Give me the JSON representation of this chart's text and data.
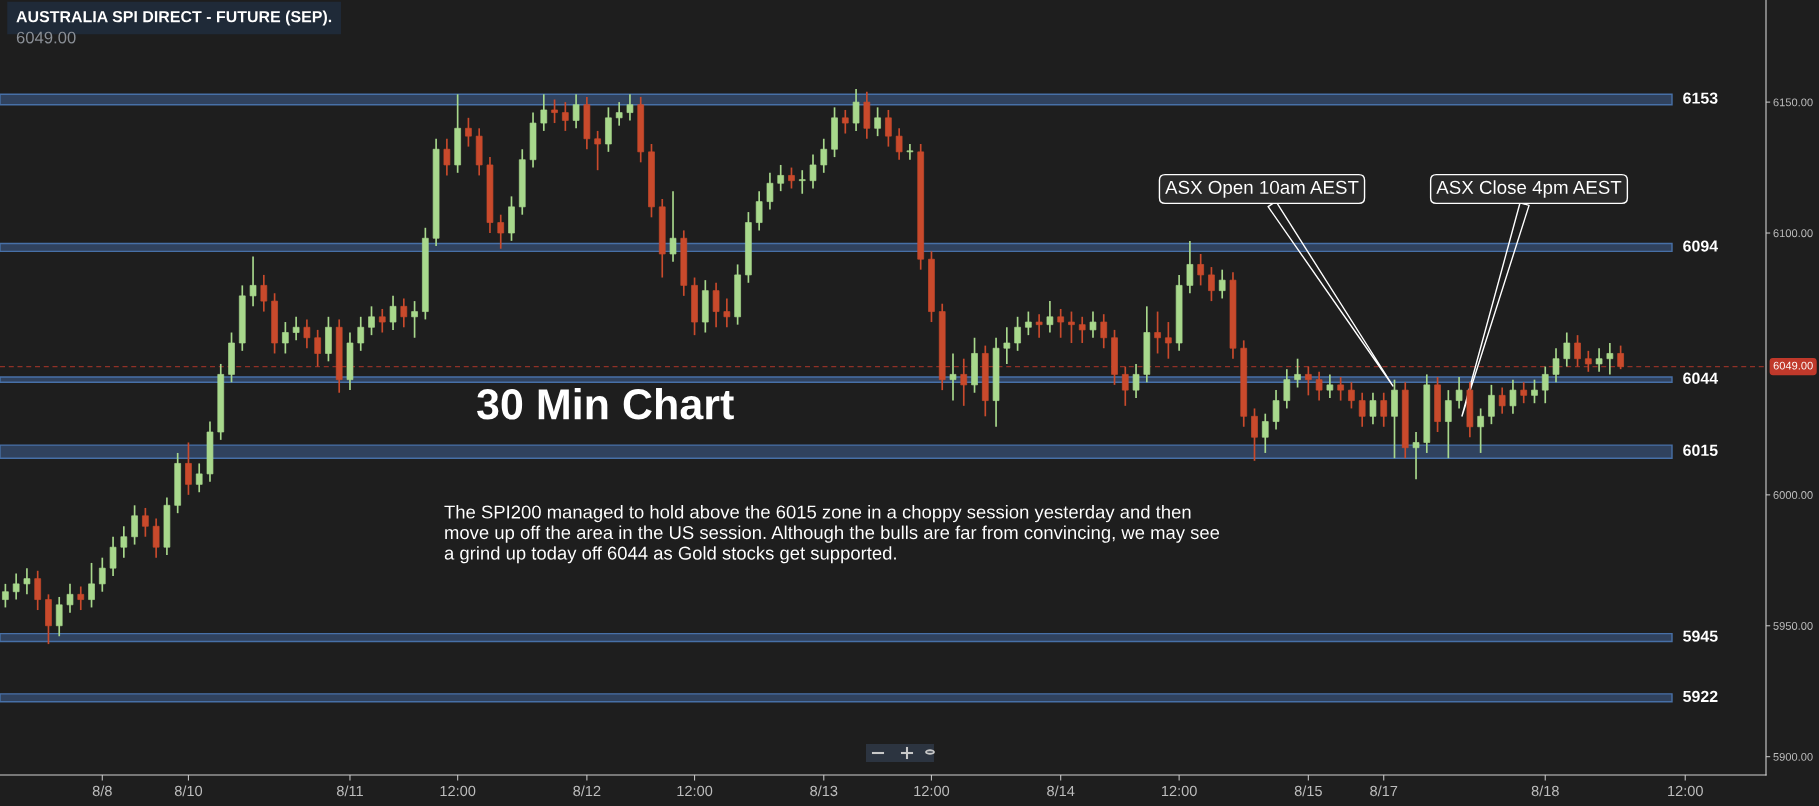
{
  "chart_data": {
    "type": "candlestick",
    "title": "AUSTRALIA SPI DIRECT - FUTURE (SEP).",
    "subtitle": "6049.00",
    "categories": [
      null,
      null,
      null,
      null,
      null,
      null,
      null,
      null,
      null,
      "8/8",
      null,
      null,
      null,
      null,
      null,
      null,
      null,
      "8/10",
      null,
      null,
      null,
      null,
      null,
      null,
      null,
      null,
      null,
      null,
      null,
      null,
      null,
      null,
      "8/11",
      null,
      null,
      null,
      null,
      null,
      null,
      null,
      null,
      null,
      "12:00",
      null,
      null,
      null,
      null,
      null,
      null,
      null,
      null,
      null,
      null,
      null,
      "8/12",
      null,
      null,
      null,
      null,
      null,
      null,
      null,
      null,
      null,
      "12:00",
      null,
      null,
      null,
      null,
      null,
      null,
      null,
      null,
      null,
      null,
      null,
      "8/13",
      null,
      null,
      null,
      null,
      null,
      null,
      null,
      null,
      null,
      "12:00",
      null,
      null,
      null,
      null,
      null,
      null,
      null,
      null,
      null,
      null,
      null,
      "8/14",
      null,
      null,
      null,
      null,
      null,
      null,
      null,
      null,
      null,
      null,
      "12:00",
      null,
      null,
      null,
      null,
      null,
      null,
      null,
      null,
      null,
      null,
      null,
      "8/15",
      null,
      null,
      null,
      null,
      null,
      null,
      "8/17",
      null,
      null,
      null,
      null,
      null,
      null,
      null,
      null,
      null,
      null,
      null,
      null,
      null,
      null,
      "8/18",
      null,
      null,
      null,
      null,
      null,
      null,
      null,
      null,
      null,
      null,
      null,
      null,
      "12:00",
      null,
      null,
      null,
      null,
      null,
      null,
      null
    ],
    "ohlc": [
      [
        5960,
        5966,
        5957,
        5963
      ],
      [
        5963,
        5970,
        5960,
        5966
      ],
      [
        5966,
        5972,
        5962,
        5968
      ],
      [
        5968,
        5971,
        5956,
        5960
      ],
      [
        5960,
        5962,
        5943,
        5950
      ],
      [
        5950,
        5961,
        5946,
        5958
      ],
      [
        5958,
        5966,
        5955,
        5962
      ],
      [
        5962,
        5965,
        5956,
        5960
      ],
      [
        5960,
        5974,
        5957,
        5966
      ],
      [
        5966,
        5976,
        5963,
        5972
      ],
      [
        5972,
        5984,
        5969,
        5980
      ],
      [
        5980,
        5988,
        5976,
        5984
      ],
      [
        5984,
        5996,
        5981,
        5992
      ],
      [
        5992,
        5995,
        5984,
        5988
      ],
      [
        5988,
        5991,
        5976,
        5980
      ],
      [
        5980,
        5999,
        5977,
        5996
      ],
      [
        5996,
        6016,
        5993,
        6012
      ],
      [
        6012,
        6020,
        6000,
        6004
      ],
      [
        6004,
        6012,
        6001,
        6008
      ],
      [
        6008,
        6028,
        6005,
        6024
      ],
      [
        6024,
        6050,
        6021,
        6046
      ],
      [
        6046,
        6062,
        6043,
        6058
      ],
      [
        6058,
        6080,
        6055,
        6076
      ],
      [
        6076,
        6091,
        6072,
        6080
      ],
      [
        6080,
        6084,
        6070,
        6074
      ],
      [
        6074,
        6077,
        6054,
        6058
      ],
      [
        6058,
        6066,
        6054,
        6062
      ],
      [
        6062,
        6068,
        6059,
        6064
      ],
      [
        6064,
        6067,
        6056,
        6060
      ],
      [
        6060,
        6063,
        6049,
        6054
      ],
      [
        6054,
        6068,
        6051,
        6064
      ],
      [
        6064,
        6067,
        6039,
        6044
      ],
      [
        6044,
        6062,
        6040,
        6058
      ],
      [
        6058,
        6068,
        6055,
        6064
      ],
      [
        6064,
        6072,
        6061,
        6068
      ],
      [
        6068,
        6071,
        6062,
        6066
      ],
      [
        6066,
        6076,
        6063,
        6072
      ],
      [
        6072,
        6075,
        6064,
        6068
      ],
      [
        6068,
        6074,
        6060,
        6070
      ],
      [
        6070,
        6102,
        6067,
        6098
      ],
      [
        6098,
        6136,
        6095,
        6132
      ],
      [
        6132,
        6136,
        6122,
        6126
      ],
      [
        6126,
        6153,
        6123,
        6140
      ],
      [
        6140,
        6144,
        6133,
        6137
      ],
      [
        6137,
        6140,
        6122,
        6126
      ],
      [
        6126,
        6129,
        6100,
        6104
      ],
      [
        6104,
        6107,
        6094,
        6100
      ],
      [
        6100,
        6114,
        6097,
        6110
      ],
      [
        6110,
        6132,
        6107,
        6128
      ],
      [
        6128,
        6146,
        6125,
        6142
      ],
      [
        6142,
        6153,
        6139,
        6147
      ],
      [
        6147,
        6151,
        6142,
        6146
      ],
      [
        6146,
        6150,
        6139,
        6143
      ],
      [
        6143,
        6153,
        6140,
        6149
      ],
      [
        6149,
        6152,
        6132,
        6136
      ],
      [
        6136,
        6139,
        6124,
        6134
      ],
      [
        6134,
        6148,
        6131,
        6144
      ],
      [
        6144,
        6150,
        6141,
        6146
      ],
      [
        6146,
        6153,
        6143,
        6149
      ],
      [
        6149,
        6152,
        6127,
        6131
      ],
      [
        6131,
        6134,
        6106,
        6110
      ],
      [
        6110,
        6113,
        6083,
        6092
      ],
      [
        6092,
        6116,
        6089,
        6098
      ],
      [
        6098,
        6101,
        6076,
        6080
      ],
      [
        6080,
        6083,
        6061,
        6066
      ],
      [
        6066,
        6082,
        6062,
        6078
      ],
      [
        6078,
        6081,
        6064,
        6070
      ],
      [
        6070,
        6075,
        6064,
        6068
      ],
      [
        6068,
        6088,
        6065,
        6084
      ],
      [
        6084,
        6108,
        6081,
        6104
      ],
      [
        6104,
        6116,
        6101,
        6112
      ],
      [
        6112,
        6123,
        6109,
        6119
      ],
      [
        6119,
        6126,
        6116,
        6122
      ],
      [
        6122,
        6125,
        6117,
        6120
      ],
      [
        6120,
        6124,
        6115,
        6120
      ],
      [
        6120,
        6130,
        6117,
        6126
      ],
      [
        6126,
        6136,
        6123,
        6132
      ],
      [
        6132,
        6148,
        6129,
        6144
      ],
      [
        6144,
        6147,
        6138,
        6142
      ],
      [
        6142,
        6155,
        6139,
        6150
      ],
      [
        6150,
        6154,
        6136,
        6140
      ],
      [
        6140,
        6148,
        6137,
        6144
      ],
      [
        6144,
        6147,
        6133,
        6137
      ],
      [
        6137,
        6140,
        6128,
        6131
      ],
      [
        6131,
        6134,
        6128,
        6131
      ],
      [
        6131,
        6134,
        6086,
        6090
      ],
      [
        6090,
        6093,
        6066,
        6070
      ],
      [
        6070,
        6073,
        6040,
        6044
      ],
      [
        6044,
        6054,
        6036,
        6046
      ],
      [
        6046,
        6052,
        6034,
        6042
      ],
      [
        6042,
        6060,
        6039,
        6054
      ],
      [
        6054,
        6057,
        6030,
        6036
      ],
      [
        6036,
        6060,
        6026,
        6056
      ],
      [
        6056,
        6064,
        6050,
        6058
      ],
      [
        6058,
        6068,
        6055,
        6064
      ],
      [
        6064,
        6070,
        6061,
        6066
      ],
      [
        6066,
        6069,
        6060,
        6065
      ],
      [
        6065,
        6074,
        6062,
        6068
      ],
      [
        6068,
        6071,
        6060,
        6066
      ],
      [
        6066,
        6070,
        6058,
        6065
      ],
      [
        6065,
        6068,
        6058,
        6063
      ],
      [
        6063,
        6070,
        6060,
        6066
      ],
      [
        6066,
        6069,
        6056,
        6060
      ],
      [
        6060,
        6063,
        6042,
        6046
      ],
      [
        6046,
        6049,
        6034,
        6040
      ],
      [
        6040,
        6050,
        6037,
        6046
      ],
      [
        6046,
        6072,
        6043,
        6062
      ],
      [
        6062,
        6070,
        6054,
        6060
      ],
      [
        6060,
        6066,
        6052,
        6058
      ],
      [
        6058,
        6084,
        6055,
        6080
      ],
      [
        6080,
        6097,
        6077,
        6088
      ],
      [
        6088,
        6092,
        6080,
        6084
      ],
      [
        6084,
        6087,
        6074,
        6078
      ],
      [
        6078,
        6086,
        6075,
        6082
      ],
      [
        6082,
        6085,
        6052,
        6056
      ],
      [
        6056,
        6059,
        6026,
        6030
      ],
      [
        6030,
        6033,
        6013,
        6022
      ],
      [
        6022,
        6031,
        6016,
        6028
      ],
      [
        6028,
        6040,
        6025,
        6036
      ],
      [
        6036,
        6048,
        6033,
        6044
      ],
      [
        6044,
        6052,
        6041,
        6046
      ],
      [
        6046,
        6049,
        6038,
        6044
      ],
      [
        6044,
        6047,
        6036,
        6040
      ],
      [
        6040,
        6046,
        6037,
        6042
      ],
      [
        6042,
        6045,
        6036,
        6040
      ],
      [
        6040,
        6043,
        6033,
        6036
      ],
      [
        6036,
        6039,
        6026,
        6030
      ],
      [
        6030,
        6039,
        6027,
        6036
      ],
      [
        6036,
        6039,
        6026,
        6030
      ],
      [
        6030,
        6044,
        6014,
        6040
      ],
      [
        6040,
        6043,
        6014,
        6018
      ],
      [
        6018,
        6024,
        6006,
        6020
      ],
      [
        6020,
        6046,
        6016,
        6042
      ],
      [
        6042,
        6045,
        6024,
        6028
      ],
      [
        6028,
        6040,
        6014,
        6036
      ],
      [
        6036,
        6045,
        6033,
        6040
      ],
      [
        6040,
        6043,
        6022,
        6026
      ],
      [
        6026,
        6033,
        6016,
        6030
      ],
      [
        6030,
        6042,
        6027,
        6038
      ],
      [
        6038,
        6041,
        6031,
        6034
      ],
      [
        6034,
        6044,
        6031,
        6040
      ],
      [
        6040,
        6043,
        6035,
        6038
      ],
      [
        6038,
        6044,
        6035,
        6040
      ],
      [
        6040,
        6049,
        6035,
        6046
      ],
      [
        6046,
        6056,
        6043,
        6052
      ],
      [
        6052,
        6062,
        6049,
        6058
      ],
      [
        6058,
        6061,
        6049,
        6052
      ],
      [
        6052,
        6055,
        6047,
        6050
      ],
      [
        6050,
        6056,
        6047,
        6052
      ],
      [
        6052,
        6058,
        6046,
        6054
      ],
      [
        6054,
        6057,
        6048,
        6049
      ],
      null,
      null,
      null,
      null,
      null,
      null,
      null,
      null,
      null,
      null,
      null,
      null,
      null
    ],
    "colors": [
      "#a8d88c",
      "#a8d88c",
      "#a8d88c",
      "#c94a2c",
      "#c94a2c",
      "#a8d88c",
      "#a8d88c",
      "#c94a2c",
      "#a8d88c",
      "#a8d88c",
      "#a8d88c",
      "#a8d88c",
      "#a8d88c",
      "#c94a2c",
      "#c94a2c",
      "#a8d88c",
      "#a8d88c",
      "#c94a2c",
      "#a8d88c",
      "#a8d88c",
      "#a8d88c",
      "#a8d88c",
      "#a8d88c",
      "#a8d88c",
      "#c94a2c",
      "#c94a2c",
      "#a8d88c",
      "#a8d88c",
      "#c94a2c",
      "#c94a2c",
      "#a8d88c",
      "#c94a2c",
      "#a8d88c",
      "#a8d88c",
      "#a8d88c",
      "#c94a2c",
      "#a8d88c",
      "#c94a2c",
      "#a8d88c",
      "#a8d88c",
      "#a8d88c",
      "#c94a2c",
      "#a8d88c",
      "#c94a2c",
      "#c94a2c",
      "#c94a2c",
      "#c94a2c",
      "#a8d88c",
      "#a8d88c",
      "#a8d88c",
      "#a8d88c",
      "#c94a2c",
      "#c94a2c",
      "#a8d88c",
      "#c94a2c",
      "#c94a2c",
      "#a8d88c",
      "#a8d88c",
      "#a8d88c",
      "#c94a2c",
      "#c94a2c",
      "#c94a2c",
      "#a8d88c",
      "#c94a2c",
      "#c94a2c",
      "#a8d88c",
      "#c94a2c",
      "#c94a2c",
      "#a8d88c",
      "#a8d88c",
      "#a8d88c",
      "#a8d88c",
      "#a8d88c",
      "#c94a2c",
      "#a8d88c",
      "#a8d88c",
      "#a8d88c",
      "#a8d88c",
      "#c94a2c",
      "#a8d88c",
      "#c94a2c",
      "#a8d88c",
      "#c94a2c",
      "#c94a2c",
      "#a8d88c",
      "#c94a2c",
      "#c94a2c",
      "#c94a2c",
      "#a8d88c",
      "#c94a2c",
      "#a8d88c",
      "#c94a2c",
      "#a8d88c",
      "#a8d88c",
      "#a8d88c",
      "#a8d88c",
      "#c94a2c",
      "#a8d88c",
      "#c94a2c",
      "#c94a2c",
      "#c94a2c",
      "#a8d88c",
      "#c94a2c",
      "#c94a2c",
      "#c94a2c",
      "#a8d88c",
      "#a8d88c",
      "#c94a2c",
      "#c94a2c",
      "#a8d88c",
      "#a8d88c",
      "#c94a2c",
      "#c94a2c",
      "#a8d88c",
      "#c94a2c",
      "#c94a2c",
      "#c94a2c",
      "#a8d88c",
      "#a8d88c",
      "#a8d88c",
      "#a8d88c",
      "#c94a2c",
      "#c94a2c",
      "#a8d88c",
      "#c94a2c",
      "#c94a2c",
      "#c94a2c",
      "#a8d88c",
      "#c94a2c",
      "#a8d88c",
      "#c94a2c",
      "#a8d88c",
      "#a8d88c",
      "#c94a2c",
      "#a8d88c",
      "#a8d88c",
      "#c94a2c",
      "#a8d88c",
      "#a8d88c",
      "#c94a2c",
      "#a8d88c",
      "#c94a2c",
      "#a8d88c",
      "#a8d88c",
      "#a8d88c",
      "#a8d88c",
      "#c94a2c",
      "#c94a2c",
      "#a8d88c",
      "#a8d88c",
      "#c94a2c",
      null,
      null,
      null,
      null,
      null,
      null,
      null,
      null,
      null,
      null,
      null,
      null,
      null
    ],
    "ylim": [
      5893,
      6189
    ],
    "yticks": [
      {
        "value": 5900,
        "label": "5900.00"
      },
      {
        "value": 5950,
        "label": "5950.00"
      },
      {
        "value": 6000,
        "label": "6000.00"
      },
      {
        "value": 6100,
        "label": "6100.00"
      },
      {
        "value": 6150,
        "label": "6150.00"
      }
    ],
    "grid": false,
    "legend": false,
    "bands": [
      {
        "axis": "y",
        "from": 6149,
        "to": 6153,
        "label": "6153",
        "color": "#34496a"
      },
      {
        "axis": "y",
        "from": 6093,
        "to": 6096,
        "label": "6094",
        "color": "#34496a"
      },
      {
        "axis": "y",
        "from": 6043,
        "to": 6045,
        "label": "6044",
        "color": "#34496a"
      },
      {
        "axis": "y",
        "from": 6014,
        "to": 6019,
        "label": "6015",
        "color": "#34496a"
      },
      {
        "axis": "y",
        "from": 5944,
        "to": 5947,
        "label": "5945",
        "color": "#34496a"
      },
      {
        "axis": "y",
        "from": 5921,
        "to": 5924,
        "label": "5922",
        "color": "#34496a"
      }
    ],
    "ref_lines": [
      {
        "axis": "y",
        "value": 6049,
        "label": "6049.00",
        "color": "#c0392b",
        "line_style": "dashed"
      }
    ],
    "annotations": [
      "30 Min Chart",
      "The SPI200 managed to hold above the 6015 zone in a choppy session yesterday and then\nmove up off the area in the US session. Although the bulls are far from convincing, we may see\na grind up today off 6044 as Gold stocks get supported.",
      "ASX Open 10am AEST",
      "ASX Close 4pm AEST"
    ]
  }
}
